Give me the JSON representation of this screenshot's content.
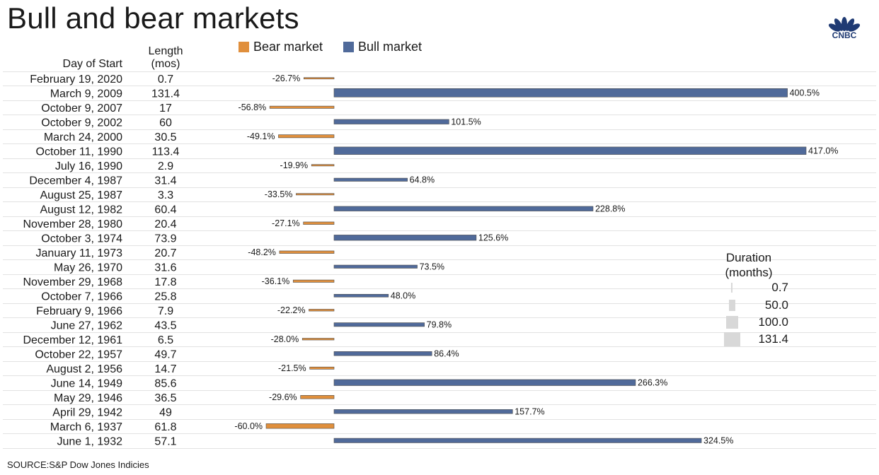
{
  "title": "Bull and bear markets",
  "logo_text": "CNBC",
  "headers": {
    "day_of_start": "Day of Start",
    "length_line1": "Length",
    "length_line2": "(mos)"
  },
  "legend": [
    {
      "label": "Bear market",
      "color": "#e08f3c"
    },
    {
      "label": "Bull market",
      "color": "#506a9a"
    }
  ],
  "duration_legend": {
    "title_line1": "Duration",
    "title_line2": "(months)",
    "values": [
      "0.7",
      "50.0",
      "100.0",
      "131.4"
    ]
  },
  "source": "SOURCE:S&P Dow Jones Indicies",
  "chart_data": {
    "type": "bar",
    "orientation": "horizontal",
    "categories": [
      "February 19, 2020",
      "March 9, 2009",
      "October 9, 2007",
      "October 9, 2002",
      "March 24, 2000",
      "October 11, 1990",
      "July 16, 1990",
      "December 4, 1987",
      "August 25, 1987",
      "August 12, 1982",
      "November 28, 1980",
      "October 3, 1974",
      "January 11, 1973",
      "May 26, 1970",
      "November 29, 1968",
      "October 7, 1966",
      "February 9, 1966",
      "June 27, 1962",
      "December 12, 1961",
      "October 22, 1957",
      "August 2, 1956",
      "June 14, 1949",
      "May 29, 1946",
      "April 29, 1942",
      "March 6, 1937",
      "June 1, 1932"
    ],
    "lengths": [
      "0.7",
      "131.4",
      "17",
      "60",
      "30.5",
      "113.4",
      "2.9",
      "31.4",
      "3.3",
      "60.4",
      "20.4",
      "73.9",
      "20.7",
      "31.6",
      "17.8",
      "25.8",
      "7.9",
      "43.5",
      "6.5",
      "49.7",
      "14.7",
      "85.6",
      "36.5",
      "49",
      "61.8",
      "57.1"
    ],
    "values": [
      -26.7,
      400.5,
      -56.8,
      101.5,
      -49.1,
      417.0,
      -19.9,
      64.8,
      -33.5,
      228.8,
      -27.1,
      125.6,
      -48.2,
      73.5,
      -36.1,
      48.0,
      -22.2,
      79.8,
      -28.0,
      86.4,
      -21.5,
      266.3,
      -29.6,
      157.7,
      -60.0,
      324.5
    ],
    "labels": [
      "-26.7%",
      "400.5%",
      "-56.8%",
      "101.5%",
      "-49.1%",
      "417.0%",
      "-19.9%",
      "64.8%",
      "-33.5%",
      "228.8%",
      "-27.1%",
      "125.6%",
      "-48.2%",
      "73.5%",
      "-36.1%",
      "48.0%",
      "-22.2%",
      "79.8%",
      "-28.0%",
      "86.4%",
      "-21.5%",
      "266.3%",
      "-29.6%",
      "157.7%",
      "-60.0%",
      "324.5%"
    ],
    "series": [
      {
        "name": "Bear market",
        "color": "#e08f3c"
      },
      {
        "name": "Bull market",
        "color": "#506a9a"
      }
    ],
    "bar_thickness_encodes": "duration (months)",
    "legend_position": "top"
  }
}
